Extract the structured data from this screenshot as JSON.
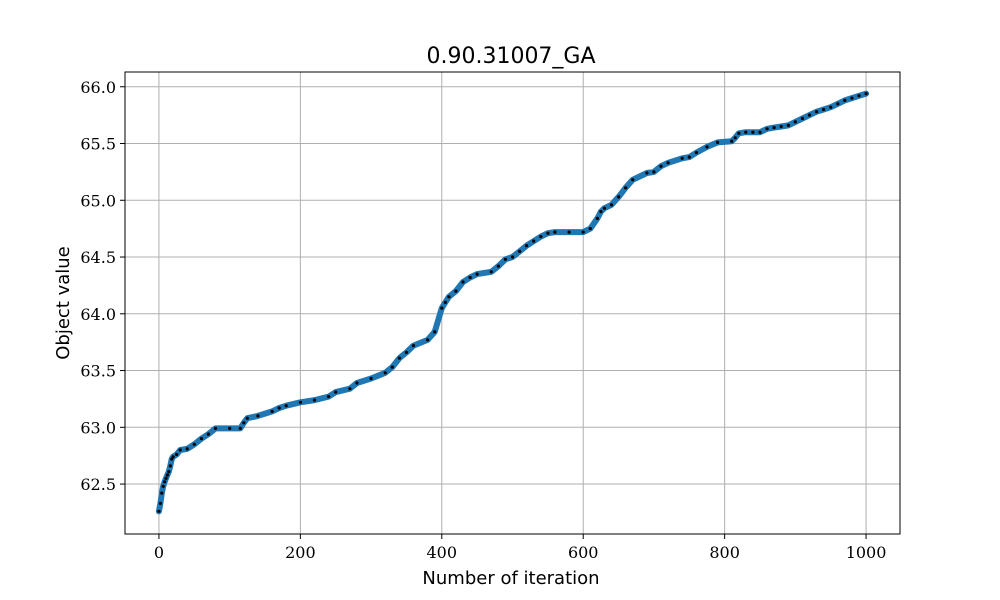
{
  "chart_data": {
    "type": "line",
    "title": "0.90.31007_GA",
    "xlabel": "Number of iteration",
    "ylabel": "Object value",
    "xlim": [
      -48,
      1048
    ],
    "ylim": [
      62.06,
      66.13
    ],
    "xticks": [
      0,
      200,
      400,
      600,
      800,
      1000
    ],
    "yticks": [
      62.5,
      63.0,
      63.5,
      64.0,
      64.5,
      65.0,
      65.5,
      66.0
    ],
    "xtick_labels": [
      "0",
      "200",
      "400",
      "600",
      "800",
      "1000"
    ],
    "ytick_labels": [
      "62.5",
      "63.0",
      "63.5",
      "64.0",
      "64.5",
      "65.0",
      "65.5",
      "66.0"
    ],
    "grid": true,
    "colors": {
      "line": "#1f77b4",
      "marker": "#000000",
      "grid": "#b0b0b0"
    },
    "series": [
      {
        "x": [
          0,
          2,
          4,
          6,
          8,
          10,
          12,
          14,
          16,
          18,
          20,
          25,
          30,
          40,
          50,
          60,
          70,
          80,
          100,
          115,
          120,
          125,
          140,
          160,
          170,
          180,
          200,
          220,
          240,
          250,
          270,
          280,
          300,
          320,
          330,
          340,
          350,
          360,
          380,
          390,
          400,
          405,
          410,
          420,
          430,
          440,
          450,
          470,
          480,
          490,
          500,
          510,
          520,
          530,
          540,
          550,
          560,
          580,
          600,
          610,
          620,
          625,
          630,
          640,
          650,
          660,
          670,
          690,
          700,
          710,
          720,
          740,
          750,
          760,
          775,
          790,
          810,
          815,
          820,
          830,
          840,
          850,
          860,
          870,
          880,
          890,
          900,
          910,
          920,
          930,
          940,
          950,
          960,
          970,
          980,
          990,
          1000
        ],
        "y": [
          62.26,
          62.33,
          62.42,
          62.48,
          62.52,
          62.55,
          62.58,
          62.61,
          62.66,
          62.72,
          62.74,
          62.76,
          62.8,
          62.81,
          62.85,
          62.9,
          62.94,
          62.99,
          62.99,
          62.99,
          63.04,
          63.08,
          63.1,
          63.14,
          63.17,
          63.19,
          63.22,
          63.24,
          63.27,
          63.31,
          63.34,
          63.39,
          63.43,
          63.48,
          63.53,
          63.61,
          63.66,
          63.72,
          63.77,
          63.84,
          64.05,
          64.1,
          64.15,
          64.2,
          64.28,
          64.32,
          64.35,
          64.37,
          64.42,
          64.48,
          64.5,
          64.55,
          64.6,
          64.64,
          64.68,
          64.71,
          64.72,
          64.72,
          64.72,
          64.75,
          64.84,
          64.9,
          64.93,
          64.96,
          65.03,
          65.11,
          65.18,
          65.24,
          65.25,
          65.3,
          65.33,
          65.37,
          65.38,
          65.42,
          65.47,
          65.51,
          65.52,
          65.55,
          65.59,
          65.6,
          65.6,
          65.6,
          65.63,
          65.64,
          65.65,
          65.66,
          65.69,
          65.72,
          65.75,
          65.78,
          65.8,
          65.82,
          65.85,
          65.88,
          65.9,
          65.92,
          65.94
        ]
      }
    ]
  }
}
